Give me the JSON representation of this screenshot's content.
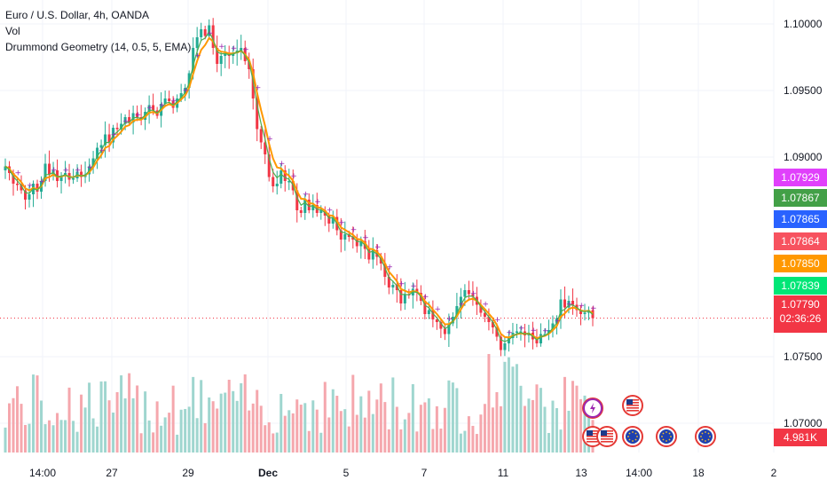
{
  "legend": {
    "title": "Euro / U.S. Dollar, 4h, OANDA",
    "vol": "Vol",
    "indicator": "Drummond Geometry (14, 0.5, 5, EMA)"
  },
  "colors": {
    "up": "#22ab94",
    "down": "#f23645",
    "vol_up": "#9fd6cf",
    "vol_down": "#f5a7ad",
    "ema_orange": "#ff9800",
    "ema_green": "#4caf50",
    "dot": "#9c27b0"
  },
  "price_labels": [
    {
      "text": "1.07929",
      "color": "#e040fb"
    },
    {
      "text": "1.07867",
      "color": "#43a047"
    },
    {
      "text": "1.07865",
      "color": "#2962ff"
    },
    {
      "text": "1.07864",
      "color": "#f7525f"
    },
    {
      "text": "1.07850",
      "color": "#ff9800"
    },
    {
      "text": "1.07839",
      "color": "#00e676"
    }
  ],
  "current": {
    "price": "1.07790",
    "countdown": "02:36:26"
  },
  "volume_label": "4.981K",
  "chart_data": {
    "type": "candlestick",
    "symbol": "EURUSD",
    "timeframe": "4h",
    "y_ticks": [
      "1.10000",
      "1.09500",
      "1.09000",
      "1.07500",
      "1.07000"
    ],
    "x_ticks": [
      "14:00",
      "27",
      "29",
      "Dec",
      "5",
      "7",
      "11",
      "13",
      "14:00",
      "18",
      "2"
    ],
    "ylim": [
      1.0678,
      1.1018
    ],
    "current_price": 1.0779,
    "candles_close": [
      1.0893,
      1.0888,
      1.088,
      1.0879,
      1.0875,
      1.0868,
      1.0872,
      1.088,
      1.0874,
      1.0882,
      1.0895,
      1.0887,
      1.089,
      1.0882,
      1.0886,
      1.0888,
      1.0883,
      1.0884,
      1.0889,
      1.0885,
      1.0887,
      1.0893,
      1.0899,
      1.0907,
      1.0909,
      1.0917,
      1.0911,
      1.0922,
      1.0921,
      1.0925,
      1.093,
      1.0926,
      1.0933,
      1.093,
      1.0928,
      1.0934,
      1.0939,
      1.0935,
      1.0931,
      1.094,
      1.0944,
      1.0942,
      1.0937,
      1.0944,
      1.0948,
      1.0952,
      1.0963,
      1.0982,
      1.099,
      1.0996,
      1.0991,
      1.0999,
      1.0982,
      1.097,
      1.0976,
      1.0978,
      1.0976,
      1.0978,
      1.098,
      1.0982,
      1.0972,
      1.0966,
      1.0944,
      1.0921,
      1.0911,
      1.0902,
      1.0885,
      1.0878,
      1.088,
      1.089,
      1.0882,
      1.0882,
      1.0875,
      1.086,
      1.0858,
      1.0868,
      1.086,
      1.0864,
      1.0858,
      1.086,
      1.0856,
      1.085,
      1.0855,
      1.0845,
      1.0838,
      1.0842,
      1.084,
      1.0838,
      1.0833,
      1.0837,
      1.0831,
      1.0823,
      1.083,
      1.0825,
      1.082,
      1.081,
      1.0802,
      1.0804,
      1.08,
      1.079,
      1.0797,
      1.0796,
      1.0801,
      1.0798,
      1.0792,
      1.0782,
      1.0785,
      1.0778,
      1.0776,
      1.0771,
      1.0767,
      1.0775,
      1.078,
      1.0788,
      1.0795,
      1.08,
      1.0797,
      1.0795,
      1.0789,
      1.0783,
      1.078,
      1.0776,
      1.0772,
      1.0765,
      1.0755,
      1.076,
      1.0764,
      1.0768,
      1.0769,
      1.0769,
      1.0766,
      1.0768,
      1.0763,
      1.076,
      1.0767,
      1.0767,
      1.077,
      1.0775,
      1.0779,
      1.0793,
      1.0787,
      1.0792,
      1.0789,
      1.0785,
      1.0782,
      1.0783,
      1.0785,
      1.0779
    ]
  }
}
